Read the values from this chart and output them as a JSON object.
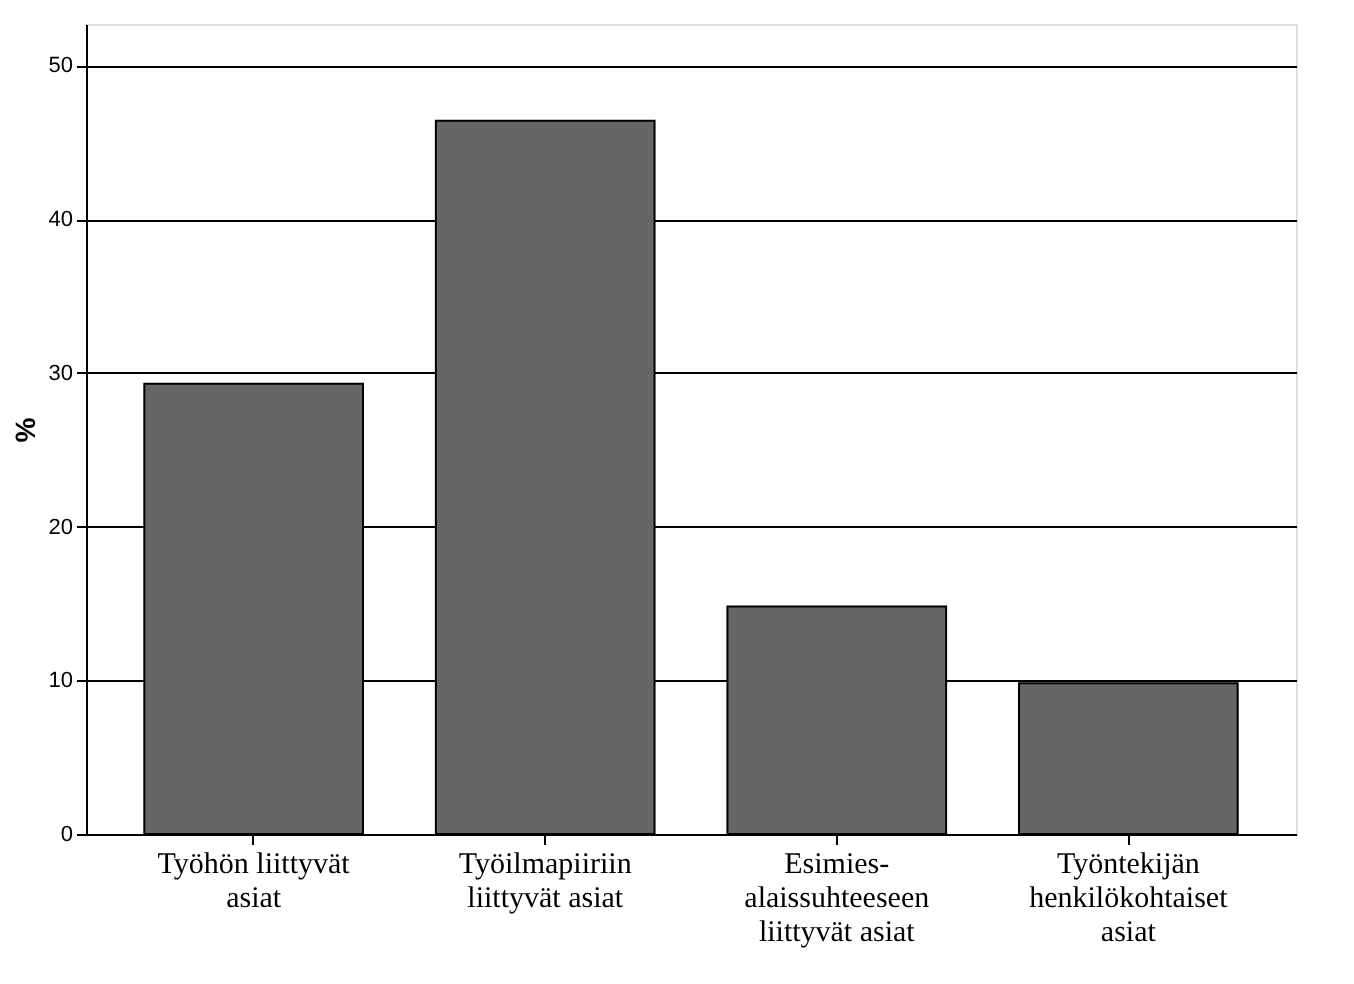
{
  "chart_data": {
    "type": "bar",
    "categories": [
      "Työhön liittyvät\nasiat",
      "Työilmapiiriin\nliittyvät asiat",
      "Esimies-\nalaissuhteeseen\nliittyvät asiat",
      "Työntekijän\nhenkilökohtaiset\nasiat"
    ],
    "values": [
      29.3,
      46.4,
      14.8,
      9.8
    ],
    "color": "#666666",
    "ylabel": "%",
    "ylim": [
      0,
      52.7
    ],
    "yticks": [
      0,
      10,
      20,
      30,
      40,
      50
    ],
    "grid": "y"
  }
}
